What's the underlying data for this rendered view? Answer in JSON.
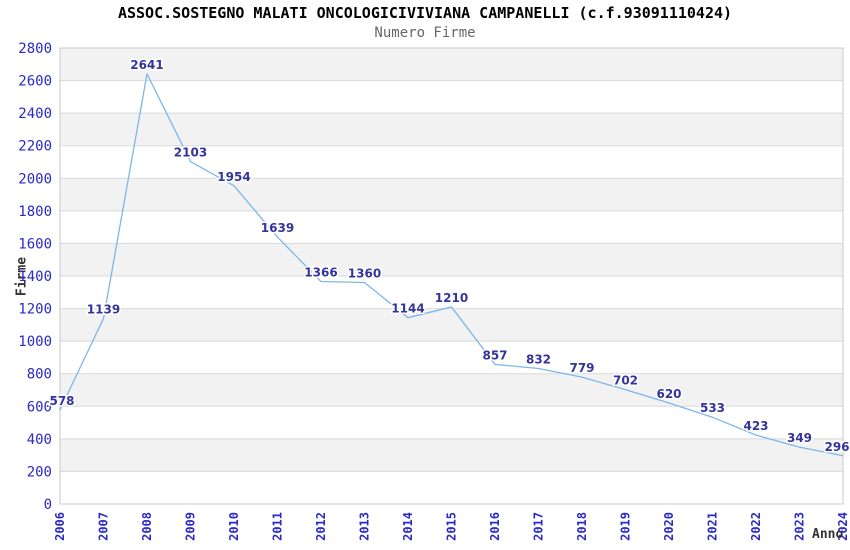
{
  "chart_data": {
    "type": "line",
    "title": "ASSOC.SOSTEGNO MALATI ONCOLOGICIVIVIANA CAMPANELLI (c.f.93091110424)",
    "subtitle": "Numero Firme",
    "xlabel": "Anno",
    "ylabel": "Firme",
    "x": [
      "2006",
      "2007",
      "2008",
      "2009",
      "2010",
      "2011",
      "2012",
      "2013",
      "2014",
      "2015",
      "2016",
      "2017",
      "2018",
      "2019",
      "2020",
      "2021",
      "2022",
      "2023",
      "2024"
    ],
    "values": [
      578,
      1139,
      2641,
      2103,
      1954,
      1639,
      1366,
      1360,
      1144,
      1210,
      857,
      832,
      779,
      702,
      620,
      533,
      423,
      349,
      296
    ],
    "ylim": [
      0,
      2800
    ],
    "ytick_step": 200,
    "legend": "none",
    "grid": "horizontal-gridlines-with-alternating-bands",
    "colors": {
      "line": "#7db7e8",
      "tick_label": "#2a2ac8",
      "data_label": "#34349b",
      "band": "#f2f2f2",
      "gridline": "#d9d9d9",
      "plot_border": "#c8c8c8",
      "title": "#000000",
      "subtitle": "#666666",
      "axis_title": "#333333"
    }
  }
}
